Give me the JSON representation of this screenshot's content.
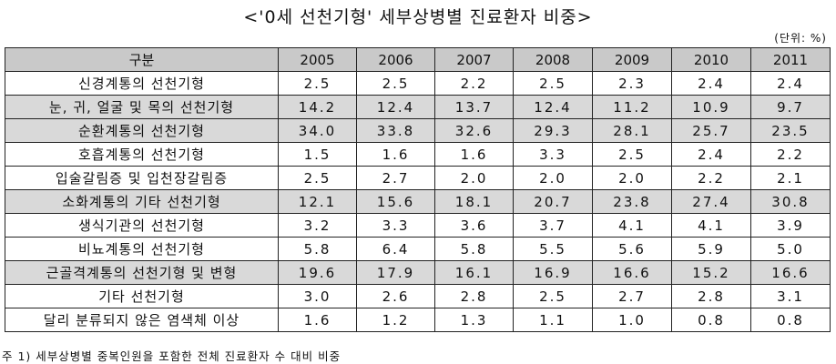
{
  "title": "<'0세 선천기형' 세부상병별 진료환자 비중>",
  "unit": "(단위: %)",
  "table": {
    "header_label": "구분",
    "years": [
      "2005",
      "2006",
      "2007",
      "2008",
      "2009",
      "2010",
      "2011"
    ],
    "rows": [
      {
        "label": "신경계통의 선천기형",
        "values": [
          "2.5",
          "2.5",
          "2.2",
          "2.5",
          "2.3",
          "2.4",
          "2.4"
        ],
        "shaded": false
      },
      {
        "label": "눈, 귀, 얼굴 및 목의 선천기형",
        "values": [
          "14.2",
          "12.4",
          "13.7",
          "12.4",
          "11.2",
          "10.9",
          "9.7"
        ],
        "shaded": true
      },
      {
        "label": "순환계통의 선천기형",
        "values": [
          "34.0",
          "33.8",
          "32.6",
          "29.3",
          "28.1",
          "25.7",
          "23.5"
        ],
        "shaded": true
      },
      {
        "label": "호흡계통의 선천기형",
        "values": [
          "1.5",
          "1.6",
          "1.6",
          "3.3",
          "2.5",
          "2.4",
          "2.2"
        ],
        "shaded": false
      },
      {
        "label": "입술갈림증 및 입천장갈림증",
        "values": [
          "2.5",
          "2.7",
          "2.0",
          "2.0",
          "2.0",
          "2.2",
          "2.1"
        ],
        "shaded": false
      },
      {
        "label": "소화계통의 기타 선천기형",
        "values": [
          "12.1",
          "15.6",
          "18.1",
          "20.7",
          "23.8",
          "27.4",
          "30.8"
        ],
        "shaded": true
      },
      {
        "label": "생식기관의 선천기형",
        "values": [
          "3.2",
          "3.3",
          "3.6",
          "3.7",
          "4.1",
          "4.1",
          "3.9"
        ],
        "shaded": false
      },
      {
        "label": "비뇨계통의 선천기형",
        "values": [
          "5.8",
          "6.4",
          "5.8",
          "5.5",
          "5.6",
          "5.9",
          "5.0"
        ],
        "shaded": false
      },
      {
        "label": "근골격계통의 선천기형 및 변형",
        "values": [
          "19.6",
          "17.9",
          "16.1",
          "16.9",
          "16.6",
          "15.2",
          "16.6"
        ],
        "shaded": true
      },
      {
        "label": "기타 선천기형",
        "values": [
          "3.0",
          "2.6",
          "2.8",
          "2.5",
          "2.7",
          "2.8",
          "3.1"
        ],
        "shaded": false
      },
      {
        "label": "달리 분류되지 않은 염색체 이상",
        "values": [
          "1.6",
          "1.2",
          "1.3",
          "1.1",
          "1.0",
          "0.8",
          "0.8"
        ],
        "shaded": false
      }
    ]
  },
  "note": "주 1) 세부상병별 중복인원을 포함한 전체 진료환자 수 대비 비중"
}
